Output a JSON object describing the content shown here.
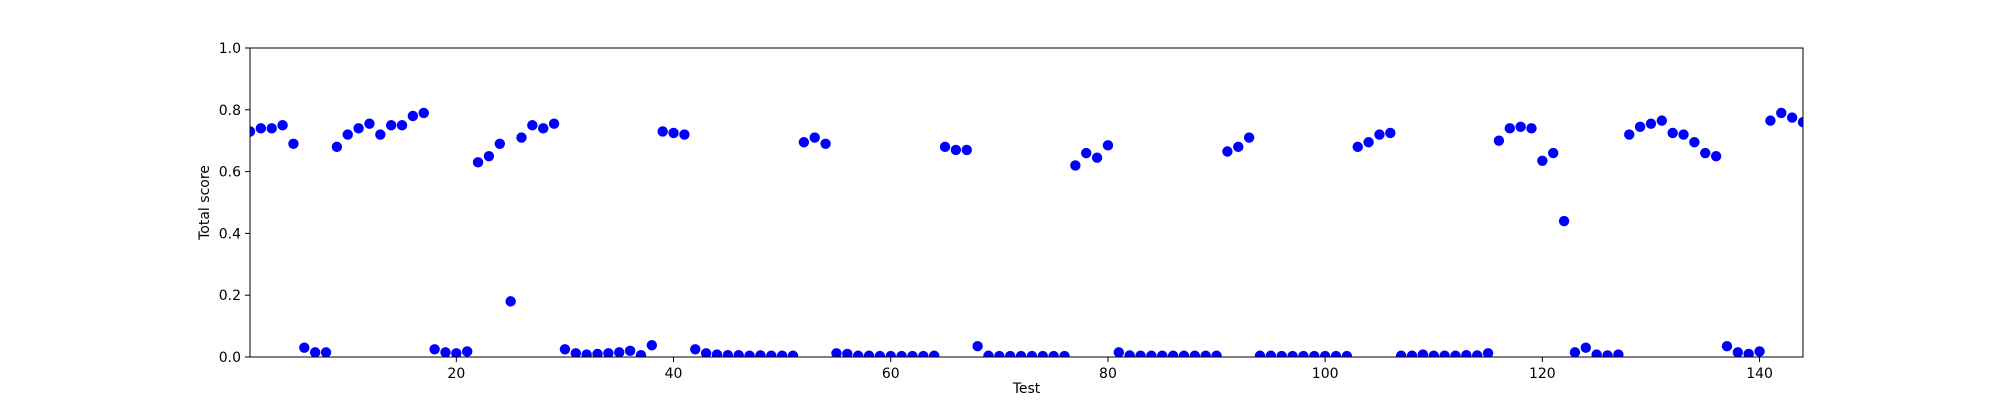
{
  "chart_data": {
    "type": "scatter",
    "title": "",
    "xlabel": "Test",
    "ylabel": "Total score",
    "xlim": [
      1,
      144
    ],
    "ylim": [
      0.0,
      1.0
    ],
    "xticks": [
      20,
      40,
      60,
      80,
      100,
      120,
      140
    ],
    "yticks": [
      0.0,
      0.2,
      0.4,
      0.6,
      0.8,
      1.0
    ],
    "ytick_labels": [
      "0.0",
      "0.2",
      "0.4",
      "0.6",
      "0.8",
      "1.0"
    ],
    "grid": false,
    "marker_color": "#0000ff",
    "x": [
      1,
      2,
      3,
      4,
      5,
      6,
      7,
      8,
      9,
      10,
      11,
      12,
      13,
      14,
      15,
      16,
      17,
      18,
      19,
      20,
      21,
      22,
      23,
      24,
      25,
      26,
      27,
      28,
      29,
      30,
      31,
      32,
      33,
      34,
      35,
      36,
      37,
      38,
      39,
      40,
      41,
      42,
      43,
      44,
      45,
      46,
      47,
      48,
      49,
      50,
      51,
      52,
      53,
      54,
      55,
      56,
      57,
      58,
      59,
      60,
      61,
      62,
      63,
      64,
      65,
      66,
      67,
      68,
      69,
      70,
      71,
      72,
      73,
      74,
      75,
      76,
      77,
      78,
      79,
      80,
      81,
      82,
      83,
      84,
      85,
      86,
      87,
      88,
      89,
      90,
      91,
      92,
      93,
      94,
      95,
      96,
      97,
      98,
      99,
      100,
      101,
      102,
      103,
      104,
      105,
      106,
      107,
      108,
      109,
      110,
      111,
      112,
      113,
      114,
      115,
      116,
      117,
      118,
      119,
      120,
      121,
      122,
      123,
      124,
      125,
      126,
      127,
      128,
      129,
      130,
      131,
      132,
      133,
      134,
      135,
      136,
      137,
      138,
      139,
      140,
      141,
      142,
      143,
      144
    ],
    "y": [
      0.73,
      0.74,
      0.74,
      0.75,
      0.69,
      0.03,
      0.015,
      0.015,
      0.68,
      0.72,
      0.74,
      0.755,
      0.72,
      0.75,
      0.75,
      0.78,
      0.79,
      0.025,
      0.015,
      0.012,
      0.018,
      0.63,
      0.65,
      0.69,
      0.18,
      0.71,
      0.75,
      0.74,
      0.755,
      0.025,
      0.012,
      0.008,
      0.01,
      0.012,
      0.015,
      0.02,
      0.006,
      0.038,
      0.73,
      0.725,
      0.72,
      0.025,
      0.012,
      0.008,
      0.006,
      0.006,
      0.004,
      0.005,
      0.004,
      0.004,
      0.004,
      0.695,
      0.71,
      0.69,
      0.012,
      0.01,
      0.004,
      0.004,
      0.003,
      0.003,
      0.003,
      0.003,
      0.003,
      0.004,
      0.68,
      0.67,
      0.67,
      0.035,
      0.004,
      0.003,
      0.003,
      0.003,
      0.003,
      0.003,
      0.003,
      0.003,
      0.62,
      0.66,
      0.645,
      0.685,
      0.015,
      0.005,
      0.004,
      0.004,
      0.004,
      0.004,
      0.004,
      0.004,
      0.004,
      0.004,
      0.665,
      0.68,
      0.71,
      0.004,
      0.004,
      0.003,
      0.003,
      0.003,
      0.003,
      0.003,
      0.003,
      0.003,
      0.68,
      0.695,
      0.72,
      0.725,
      0.004,
      0.004,
      0.008,
      0.004,
      0.004,
      0.004,
      0.006,
      0.005,
      0.012,
      0.7,
      0.74,
      0.745,
      0.74,
      0.635,
      0.66,
      0.44,
      0.015,
      0.03,
      0.008,
      0.005,
      0.008,
      0.72,
      0.745,
      0.755,
      0.765,
      0.725,
      0.72,
      0.695,
      0.66,
      0.65,
      0.035,
      0.015,
      0.01,
      0.018,
      0.765,
      0.79,
      0.775,
      0.76
    ]
  }
}
